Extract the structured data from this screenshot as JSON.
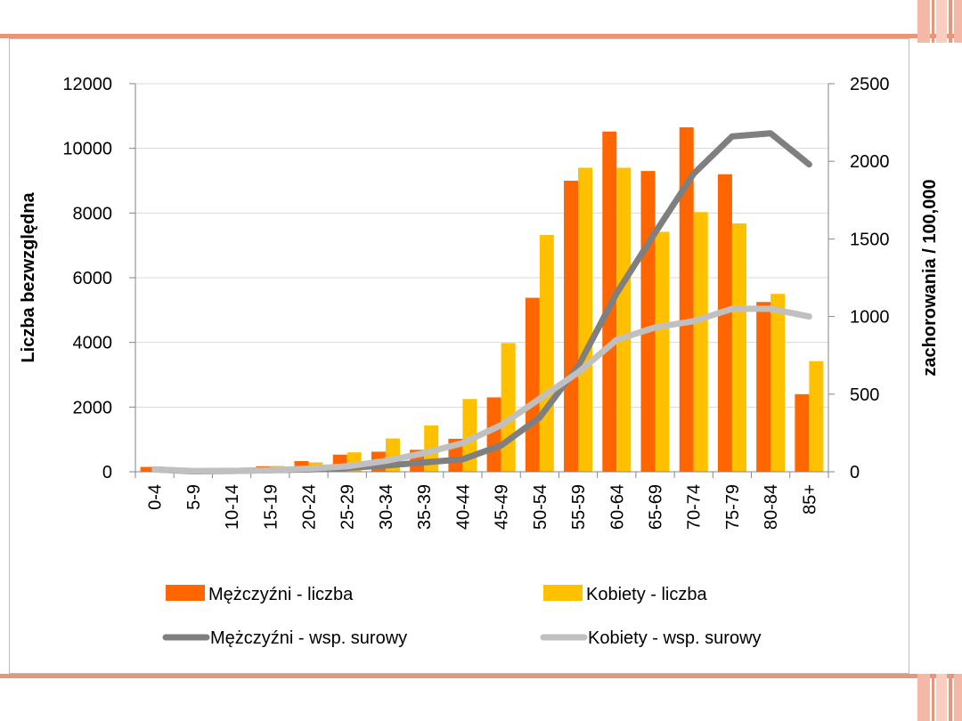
{
  "colors": {
    "men_count": "#ff6600",
    "women_count": "#ffc000",
    "men_rate": "#7f7f7f",
    "women_rate": "#c0c0c0",
    "gridline": "#d9d9d9",
    "accent_rule": "#e8957c"
  },
  "chart_data": {
    "type": "bar",
    "categories": [
      "0-4",
      "5-9",
      "10-14",
      "15-19",
      "20-24",
      "25-29",
      "30-34",
      "35-39",
      "40-44",
      "45-49",
      "50-54",
      "55-59",
      "60-64",
      "65-69",
      "70-74",
      "75-79",
      "80-84",
      "85+"
    ],
    "series": [
      {
        "name": "Mężczyźni - liczba",
        "type": "bar",
        "axis": "left",
        "color_key": "men_count",
        "values": [
          150,
          20,
          30,
          170,
          330,
          530,
          620,
          680,
          1020,
          2300,
          5380,
          9000,
          10520,
          9300,
          10650,
          9200,
          5250,
          2400
        ]
      },
      {
        "name": "Kobiety - liczba",
        "type": "bar",
        "axis": "left",
        "color_key": "women_count",
        "values": [
          20,
          10,
          40,
          180,
          290,
          600,
          1030,
          1430,
          2250,
          3980,
          7320,
          9400,
          9400,
          7420,
          8030,
          7680,
          5500,
          3420
        ]
      },
      {
        "name": "Mężczyźni - wsp. surowy",
        "type": "line",
        "axis": "right",
        "color_key": "men_rate",
        "values": [
          15,
          3,
          5,
          10,
          15,
          25,
          40,
          60,
          80,
          170,
          350,
          680,
          1150,
          1540,
          1920,
          2160,
          2180,
          1980
        ]
      },
      {
        "name": "Kobiety - wsp. surowy",
        "type": "line",
        "axis": "right",
        "color_key": "women_rate",
        "values": [
          15,
          5,
          5,
          10,
          20,
          35,
          70,
          120,
          185,
          300,
          470,
          640,
          850,
          930,
          970,
          1050,
          1050,
          1000
        ]
      }
    ],
    "ylabel": "Liczba bezwzględna",
    "y2label": "zachorowania / 100,000",
    "ylim": [
      0,
      12000
    ],
    "y2lim": [
      0,
      2500
    ],
    "yticks": [
      "0",
      "2000",
      "4000",
      "6000",
      "8000",
      "10000",
      "12000"
    ],
    "y2ticks": [
      "0",
      "500",
      "1000",
      "1500",
      "2000",
      "2500"
    ],
    "grid": true,
    "legend_position": "bottom"
  }
}
